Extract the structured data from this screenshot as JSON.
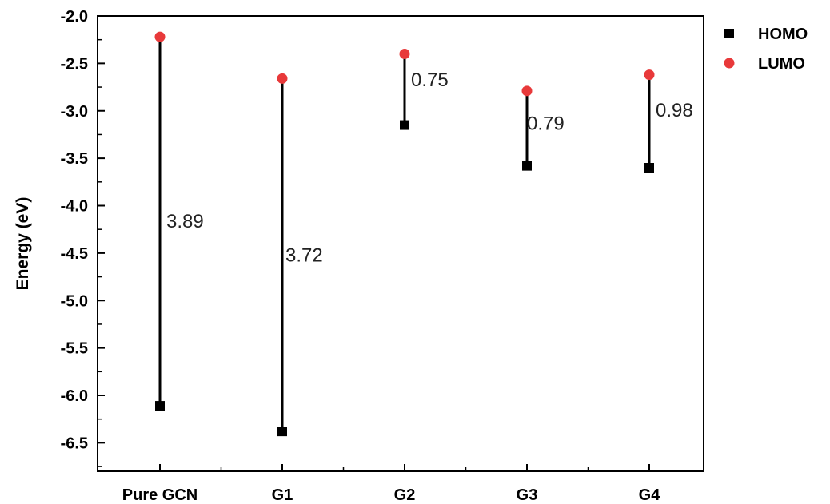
{
  "chart_data": {
    "type": "scatter",
    "ylabel": "Energy (eV)",
    "ylim": [
      -6.8,
      -2.0
    ],
    "yticks": [
      "-2.0",
      "-2.5",
      "-3.0",
      "-3.5",
      "-4.0",
      "-4.5",
      "-5.0",
      "-5.5",
      "-6.0",
      "-6.5"
    ],
    "categories": [
      "Pure GCN",
      "G1",
      "G2",
      "G3",
      "G4"
    ],
    "series": [
      {
        "name": "HOMO",
        "marker": "square",
        "color": "#000000",
        "values": [
          -6.11,
          -6.38,
          -3.15,
          -3.58,
          -3.6
        ]
      },
      {
        "name": "LUMO",
        "marker": "circle",
        "color": "#e8393a",
        "values": [
          -2.22,
          -2.66,
          -2.4,
          -2.79,
          -2.62
        ]
      }
    ],
    "gap_labels": [
      "3.89",
      "3.72",
      "0.75",
      "0.79",
      "0.98"
    ],
    "legend_position": "top-right",
    "grid": false
  }
}
